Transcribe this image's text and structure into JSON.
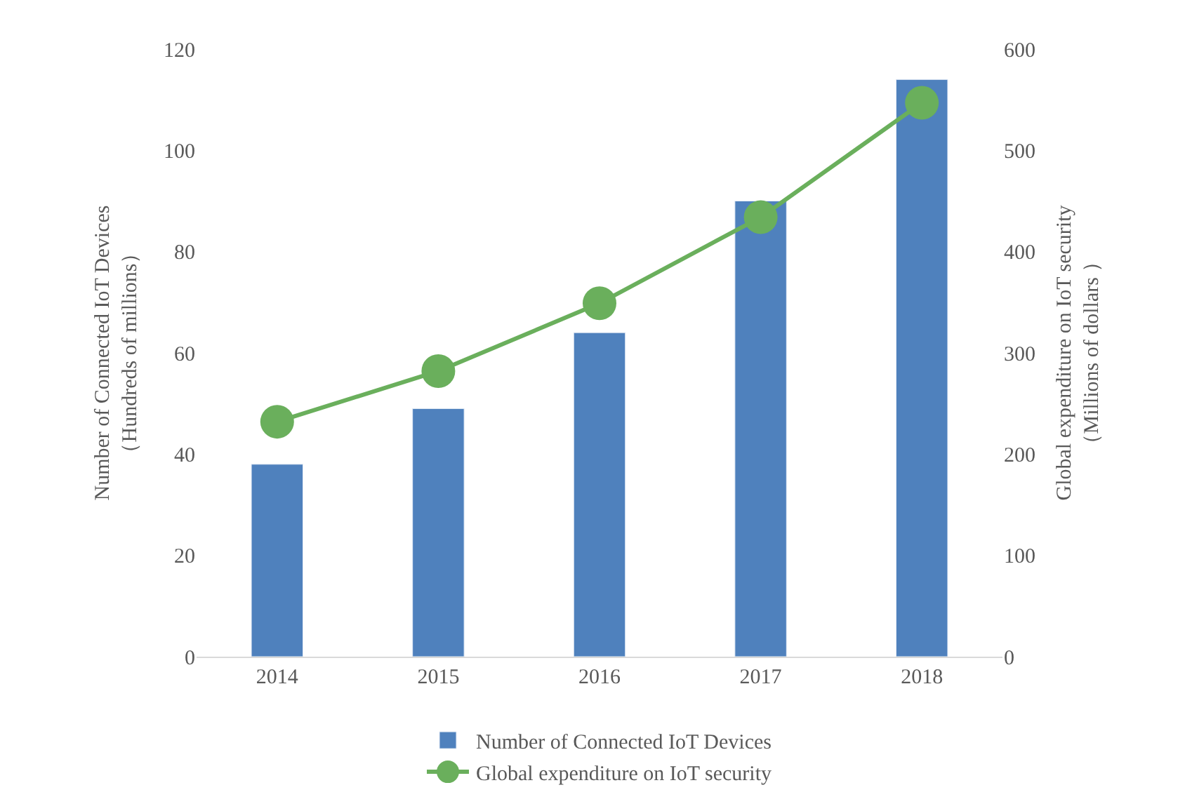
{
  "chart_data": {
    "type": "bar",
    "categories": [
      "2014",
      "2015",
      "2016",
      "2017",
      "2018"
    ],
    "ylabel": "Number of Connected IoT Devices\n（Hundreds of millions）",
    "y2label": "Global expenditure on IoT security\n（Millions of dollars ）",
    "ylim": [
      0,
      120
    ],
    "yticks": [
      0,
      20,
      40,
      60,
      80,
      100,
      120
    ],
    "y2lim": [
      0,
      600
    ],
    "y2ticks": [
      0,
      100,
      200,
      300,
      400,
      500,
      600
    ],
    "series": [
      {
        "name": "Number of Connected IoT Devices",
        "color": "#4f81bd",
        "values": [
          38,
          49,
          64,
          90,
          114
        ]
      },
      {
        "name": "Global expenditure on IoT security",
        "type": "line",
        "axis": "y2",
        "color": "#6aaf5c",
        "marker": "circle",
        "values": [
          232,
          282,
          349,
          434,
          547
        ]
      }
    ],
    "grid": false,
    "legend": "bottom"
  }
}
